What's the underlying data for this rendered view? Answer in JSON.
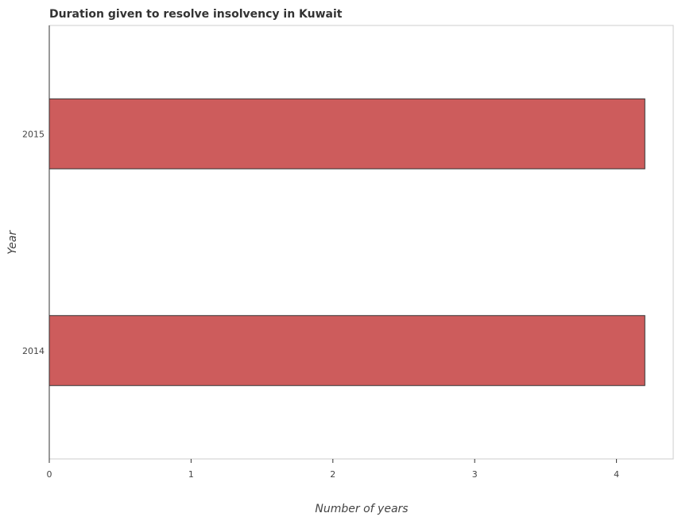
{
  "chart_data": {
    "type": "bar",
    "orientation": "horizontal",
    "title": "Duration given to resolve insolvency in Kuwait",
    "xlabel": "Number of years",
    "ylabel": "Year",
    "categories": [
      "2014",
      "2015"
    ],
    "values": [
      4.2,
      4.2
    ],
    "xlim": [
      0,
      4.4
    ],
    "xticks": [
      "0",
      "1",
      "2",
      "3",
      "4"
    ],
    "grid": false,
    "bar_color": "#cd5c5c"
  }
}
